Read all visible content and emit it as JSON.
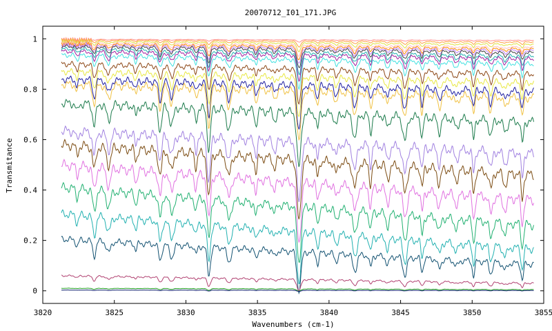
{
  "chart_data": {
    "type": "line",
    "title": "20070712_I01_171.JPG",
    "xlabel": "Wavenumbers (cm-1)",
    "ylabel": "Transmitance",
    "xlim": [
      3820,
      3855
    ],
    "ylim": [
      -0.05,
      1.05
    ],
    "x_ticks": [
      3820,
      3825,
      3830,
      3835,
      3840,
      3845,
      3850,
      3855
    ],
    "y_ticks": [
      0,
      0.2,
      0.4,
      0.6,
      0.8,
      1
    ],
    "x_tick_labels": [
      "3820",
      "3825",
      "3830",
      "3835",
      "3840",
      "3845",
      "3850",
      "3855"
    ],
    "y_tick_labels": [
      "0",
      "0.2",
      "0.4",
      "0.6",
      "0.8",
      "1"
    ],
    "x_range_data": [
      3821.3,
      3854.3
    ],
    "grid": false,
    "legend": "none",
    "absorption_lines_x": [
      3822.4,
      3823.6,
      3824.6,
      3826.5,
      3828.2,
      3829.0,
      3830.7,
      3831.6,
      3833.0,
      3834.9,
      3836.2,
      3837.9,
      3839.2,
      3840.5,
      3841.8,
      3842.9,
      3844.1,
      3845.3,
      3846.5,
      3847.7,
      3848.9,
      3850.1,
      3851.3,
      3852.3,
      3853.5
    ],
    "series": [
      {
        "baseline": 0.998,
        "slope": -0.004,
        "depth": 0.004,
        "color": "#ff9090"
      },
      {
        "baseline": 0.995,
        "slope": -0.008,
        "depth": 0.01,
        "color": "#ffa040"
      },
      {
        "baseline": 0.99,
        "slope": -0.012,
        "depth": 0.015,
        "color": "#e0e040"
      },
      {
        "baseline": 0.985,
        "slope": -0.018,
        "depth": 0.02,
        "color": "#ffc0c0"
      },
      {
        "baseline": 0.98,
        "slope": -0.02,
        "depth": 0.025,
        "color": "#ff8c00"
      },
      {
        "baseline": 0.975,
        "slope": -0.022,
        "depth": 0.03,
        "color": "#c080ff"
      },
      {
        "baseline": 0.97,
        "slope": -0.025,
        "depth": 0.035,
        "color": "#404040"
      },
      {
        "baseline": 0.96,
        "slope": -0.03,
        "depth": 0.04,
        "color": "#20b0b0"
      },
      {
        "baseline": 0.95,
        "slope": -0.03,
        "depth": 0.045,
        "color": "#a020a0"
      },
      {
        "baseline": 0.935,
        "slope": -0.035,
        "depth": 0.05,
        "color": "#40e0e0"
      },
      {
        "baseline": 0.9,
        "slope": -0.04,
        "depth": 0.06,
        "color": "#8b4513"
      },
      {
        "baseline": 0.87,
        "slope": -0.045,
        "depth": 0.07,
        "color": "#e8e840"
      },
      {
        "baseline": 0.84,
        "slope": -0.05,
        "depth": 0.08,
        "color": "#1c1ca0"
      },
      {
        "baseline": 0.82,
        "slope": -0.055,
        "depth": 0.09,
        "color": "#f0c040"
      },
      {
        "baseline": 0.745,
        "slope": -0.075,
        "depth": 0.1,
        "color": "#1a7a4a"
      },
      {
        "baseline": 0.635,
        "slope": -0.09,
        "depth": 0.11,
        "color": "#a080e0"
      },
      {
        "baseline": 0.58,
        "slope": -0.12,
        "depth": 0.11,
        "color": "#7a4a10"
      },
      {
        "baseline": 0.5,
        "slope": -0.14,
        "depth": 0.11,
        "color": "#e070e0"
      },
      {
        "baseline": 0.41,
        "slope": -0.15,
        "depth": 0.1,
        "color": "#20b070"
      },
      {
        "baseline": 0.305,
        "slope": -0.14,
        "depth": 0.09,
        "color": "#20b0b0"
      },
      {
        "baseline": 0.205,
        "slope": -0.1,
        "depth": 0.07,
        "color": "#105070"
      },
      {
        "baseline": 0.06,
        "slope": -0.03,
        "depth": 0.02,
        "color": "#b04070"
      },
      {
        "baseline": 0.01,
        "slope": -0.005,
        "depth": 0.004,
        "color": "#20a020"
      },
      {
        "baseline": 0.003,
        "slope": -0.002,
        "depth": 0.002,
        "color": "#102070"
      }
    ]
  }
}
